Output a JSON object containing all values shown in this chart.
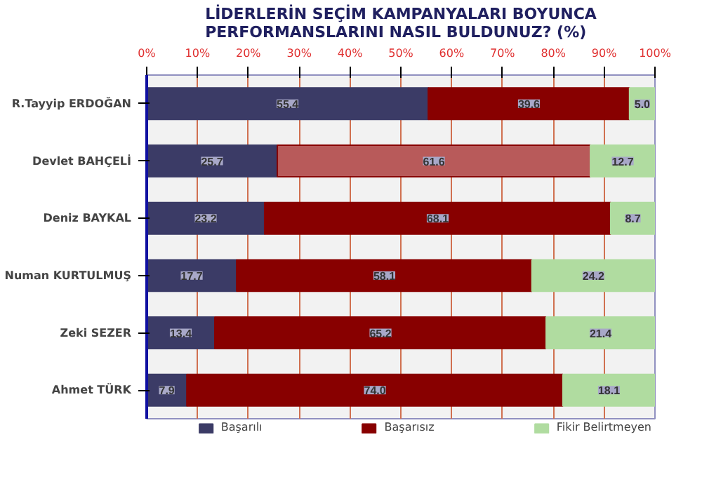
{
  "chart_data": {
    "type": "bar",
    "orientation": "horizontal",
    "stacked": true,
    "title": "LİDERLERİN SEÇİM KAMPANYALARI BOYUNCA PERFORMANSLARINI NASIL BULDUNUZ? (%)",
    "categories": [
      "R.Tayyip ERDOĞAN",
      "Devlet BAHÇELİ",
      "Deniz BAYKAL",
      "Numan KURTULMUŞ",
      "Zeki SEZER",
      "Ahmet TÜRK"
    ],
    "series": [
      {
        "name": "Başarılı",
        "color": "#3b3b66",
        "values": [
          55.4,
          25.7,
          23.2,
          17.7,
          13.4,
          7.9
        ],
        "value_labels": [
          "55.4",
          "25.7",
          "23.2",
          "17.7",
          "13.4",
          "7.9"
        ]
      },
      {
        "name": "Başarısız",
        "color": "#880000",
        "colors": [
          "#880000",
          "#b85a5a",
          "#880000",
          "#880000",
          "#880000",
          "#880000"
        ],
        "values": [
          39.6,
          61.6,
          68.1,
          58.1,
          65.2,
          74
        ],
        "value_labels": [
          "39.6",
          "61.6",
          "68.1",
          "58.1",
          "65.2",
          "74.0"
        ]
      },
      {
        "name": "Fikir Belirtmeyen",
        "color": "#b0dca0",
        "values": [
          5,
          12.7,
          8.7,
          24.2,
          21.4,
          18.1
        ],
        "value_labels": [
          "5.0",
          "12.7",
          "8.7",
          "24.2",
          "21.4",
          "18.1"
        ]
      }
    ],
    "xlim": [
      0,
      100
    ],
    "xticks": [
      {
        "value": 0,
        "label": "0%"
      },
      {
        "value": 10,
        "label": "10%"
      },
      {
        "value": 20,
        "label": "20%"
      },
      {
        "value": 30,
        "label": "30%"
      },
      {
        "value": 40,
        "label": "40%"
      },
      {
        "value": 50,
        "label": "50%"
      },
      {
        "value": 60,
        "label": "60%"
      },
      {
        "value": 70,
        "label": "70%"
      },
      {
        "value": 80,
        "label": "80%"
      },
      {
        "value": 90,
        "label": "90%"
      },
      {
        "value": 100,
        "label": "100%"
      }
    ],
    "grid": "x",
    "legend": "bottom"
  }
}
